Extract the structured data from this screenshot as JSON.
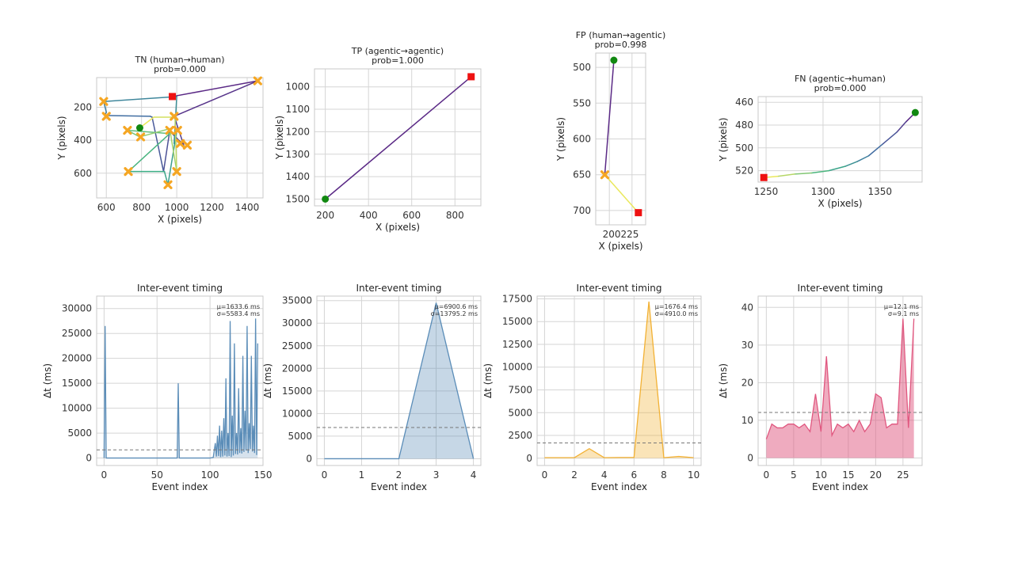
{
  "chart_data": [
    {
      "id": "tn-path",
      "type": "line",
      "title": [
        "TN (human→human)",
        "prob=0.000"
      ],
      "xlabel": "X (pixels)",
      "ylabel": "Y (pixels)",
      "xlim": [
        545,
        1490
      ],
      "ylim": [
        750,
        20
      ],
      "y_inverted": true,
      "xticks": [
        600,
        800,
        1000,
        1200,
        1400
      ],
      "yticks": [
        200,
        400,
        600
      ],
      "path": [
        [
          975,
          135
        ],
        [
          1460,
          40
        ],
        [
          985,
          255
        ],
        [
          1040,
          430
        ],
        [
          960,
          345
        ],
        [
          925,
          590
        ],
        [
          860,
          260
        ],
        [
          850,
          255
        ],
        [
          590,
          250
        ],
        [
          600,
          230
        ],
        [
          585,
          165
        ],
        [
          1000,
          135
        ],
        [
          985,
          420
        ],
        [
          1000,
          345
        ],
        [
          950,
          670
        ],
        [
          930,
          590
        ],
        [
          725,
          590
        ],
        [
          960,
          360
        ],
        [
          720,
          340
        ],
        [
          790,
          380
        ],
        [
          960,
          330
        ],
        [
          1000,
          590
        ],
        [
          990,
          260
        ],
        [
          870,
          260
        ],
        [
          790,
          325
        ]
      ],
      "waypoints": [
        [
          1460,
          40
        ],
        [
          585,
          165
        ],
        [
          600,
          255
        ],
        [
          985,
          255
        ],
        [
          720,
          340
        ],
        [
          795,
          380
        ],
        [
          960,
          340
        ],
        [
          1005,
          340
        ],
        [
          1020,
          420
        ],
        [
          1060,
          430
        ],
        [
          725,
          590
        ],
        [
          1000,
          590
        ],
        [
          950,
          670
        ]
      ],
      "start": [
        790,
        325
      ],
      "end": [
        975,
        135
      ]
    },
    {
      "id": "tp-path",
      "type": "line",
      "title": [
        "TP (agentic→agentic)",
        "prob=1.000"
      ],
      "xlabel": "X (pixels)",
      "ylabel": "Y (pixels)",
      "xlim": [
        150,
        920
      ],
      "ylim": [
        1530,
        920
      ],
      "y_inverted": true,
      "xticks": [
        200,
        400,
        600,
        800
      ],
      "yticks": [
        1000,
        1100,
        1200,
        1300,
        1400,
        1500
      ],
      "path": [
        [
          200,
          1500
        ],
        [
          875,
          955
        ]
      ],
      "waypoints": [],
      "start": [
        200,
        1500
      ],
      "end": [
        875,
        955
      ]
    },
    {
      "id": "fp-path",
      "type": "line",
      "title": [
        "FP (human→agentic)",
        "prob=0.998"
      ],
      "xlabel": "X (pixels)",
      "ylabel": "Y (pixels)",
      "xlim": [
        185,
        240
      ],
      "ylim": [
        720,
        480
      ],
      "y_inverted": true,
      "xticks": [
        200,
        225
      ],
      "xtick_labels": [
        "200225"
      ],
      "yticks": [
        500,
        550,
        600,
        650,
        700
      ],
      "path": [
        [
          205,
          490
        ],
        [
          195,
          650
        ],
        [
          232,
          703
        ]
      ],
      "waypoints": [
        [
          195,
          650
        ]
      ],
      "start": [
        205,
        490
      ],
      "end": [
        232,
        703
      ]
    },
    {
      "id": "fn-path",
      "type": "line",
      "title": [
        "FN (agentic→human)",
        "prob=0.000"
      ],
      "xlabel": "X (pixels)",
      "ylabel": "Y (pixels)",
      "xlim": [
        1243,
        1387
      ],
      "ylim": [
        530,
        455
      ],
      "y_inverted": true,
      "xticks": [
        1250,
        1300,
        1350
      ],
      "yticks": [
        460,
        480,
        500,
        520
      ],
      "path": [
        [
          1381,
          469
        ],
        [
          1373,
          477
        ],
        [
          1365,
          486
        ],
        [
          1352,
          497
        ],
        [
          1340,
          507
        ],
        [
          1330,
          512
        ],
        [
          1320,
          516
        ],
        [
          1305,
          520
        ],
        [
          1290,
          522
        ],
        [
          1275,
          523
        ],
        [
          1260,
          525
        ],
        [
          1248,
          526
        ]
      ],
      "waypoints": [],
      "start": [
        1381,
        469
      ],
      "end": [
        1248,
        526
      ]
    },
    {
      "id": "tn-timing",
      "type": "area",
      "title": "Inter-event timing",
      "xlabel": "Event index",
      "ylabel": "Δt (ms)",
      "xlim": [
        -7,
        150
      ],
      "ylim": [
        -1500,
        32500
      ],
      "xticks": [
        0,
        50,
        100,
        150
      ],
      "yticks": [
        0,
        5000,
        10000,
        15000,
        20000,
        25000,
        30000
      ],
      "color": "#5b8db8",
      "fill_opacity": 0.25,
      "mean_line": 1633.6,
      "stats": [
        "μ=1633.6 ms",
        "σ=5583.4 ms"
      ],
      "x": [
        0,
        1,
        2,
        69,
        70,
        71,
        100,
        103,
        105,
        106,
        107,
        108,
        109,
        110,
        111,
        112,
        113,
        114,
        115,
        116,
        117,
        118,
        119,
        120,
        121,
        122,
        123,
        124,
        125,
        126,
        127,
        128,
        129,
        130,
        131,
        132,
        133,
        134,
        135,
        136,
        137,
        138,
        139,
        140,
        141,
        142,
        143,
        144,
        145
      ],
      "y": [
        0,
        26500,
        0,
        0,
        15000,
        0,
        0,
        100,
        3000,
        300,
        4500,
        400,
        6500,
        200,
        5500,
        300,
        8000,
        500,
        16000,
        300,
        5000,
        400,
        27500,
        200,
        8500,
        500,
        23000,
        800,
        5000,
        700,
        14000,
        1000,
        6000,
        900,
        20500,
        1200,
        9500,
        1500,
        26500,
        1000,
        7000,
        1800,
        20500,
        1300,
        6500,
        1000,
        28000,
        600,
        23000
      ]
    },
    {
      "id": "tp-timing",
      "type": "area",
      "title": "Inter-event timing",
      "xlabel": "Event index",
      "ylabel": "Δt (ms)",
      "xlim": [
        -0.2,
        4.2
      ],
      "ylim": [
        -1500,
        36000
      ],
      "xticks": [
        0,
        1,
        2,
        3,
        4
      ],
      "yticks": [
        0,
        5000,
        10000,
        15000,
        20000,
        25000,
        30000,
        35000
      ],
      "color": "#5b8db8",
      "fill_opacity": 0.35,
      "mean_line": 6900.6,
      "stats": [
        "μ=6900.6 ms",
        "σ=13795.2 ms"
      ],
      "x": [
        0,
        1,
        2,
        3,
        4
      ],
      "y": [
        0,
        0,
        0,
        34500,
        0
      ]
    },
    {
      "id": "fp-timing",
      "type": "area",
      "title": "Inter-event timing",
      "xlabel": "Event index",
      "ylabel": "Δt (ms)",
      "xlim": [
        -0.5,
        10.5
      ],
      "ylim": [
        -800,
        17800
      ],
      "xticks": [
        0,
        2,
        4,
        6,
        8,
        10
      ],
      "yticks": [
        0,
        2500,
        5000,
        7500,
        10000,
        12500,
        15000,
        17500
      ],
      "color": "#f2b134",
      "fill_opacity": 0.35,
      "mean_line": 1676.4,
      "stats": [
        "μ=1676.4 ms",
        "σ=4910.0 ms"
      ],
      "x": [
        0,
        1,
        2,
        3,
        4,
        5,
        6,
        7,
        8,
        9,
        10
      ],
      "y": [
        60,
        60,
        60,
        1050,
        60,
        80,
        80,
        17200,
        60,
        200,
        60
      ]
    },
    {
      "id": "fn-timing",
      "type": "area",
      "title": "Inter-event timing",
      "xlabel": "Event index",
      "ylabel": "Δt (ms)",
      "xlim": [
        -1.5,
        28.5
      ],
      "ylim": [
        -2,
        43
      ],
      "xticks": [
        0,
        5,
        10,
        15,
        20,
        25
      ],
      "yticks": [
        0,
        10,
        20,
        30,
        40
      ],
      "color": "#e0577f",
      "fill_opacity": 0.5,
      "mean_line": 12.1,
      "stats": [
        "μ=12.1 ms",
        "σ=9.1 ms"
      ],
      "x": [
        0,
        1,
        2,
        3,
        4,
        5,
        6,
        7,
        8,
        9,
        10,
        11,
        12,
        13,
        14,
        15,
        16,
        17,
        18,
        19,
        20,
        21,
        22,
        23,
        24,
        25,
        26,
        27
      ],
      "y": [
        5,
        9,
        8,
        8,
        9,
        9,
        8,
        9,
        7,
        17,
        7,
        27,
        6,
        9,
        8,
        9,
        7,
        10,
        7,
        9,
        17,
        16,
        8,
        9,
        9,
        37,
        8,
        37
      ]
    }
  ],
  "colors": {
    "start_marker": "#118811",
    "end_marker": "#ee1111",
    "waypoint": "#f5a623",
    "path_gradient": [
      "#5b2a86",
      "#3f74a5",
      "#3bb083",
      "#eae85c"
    ],
    "mean_line": "#777777"
  }
}
